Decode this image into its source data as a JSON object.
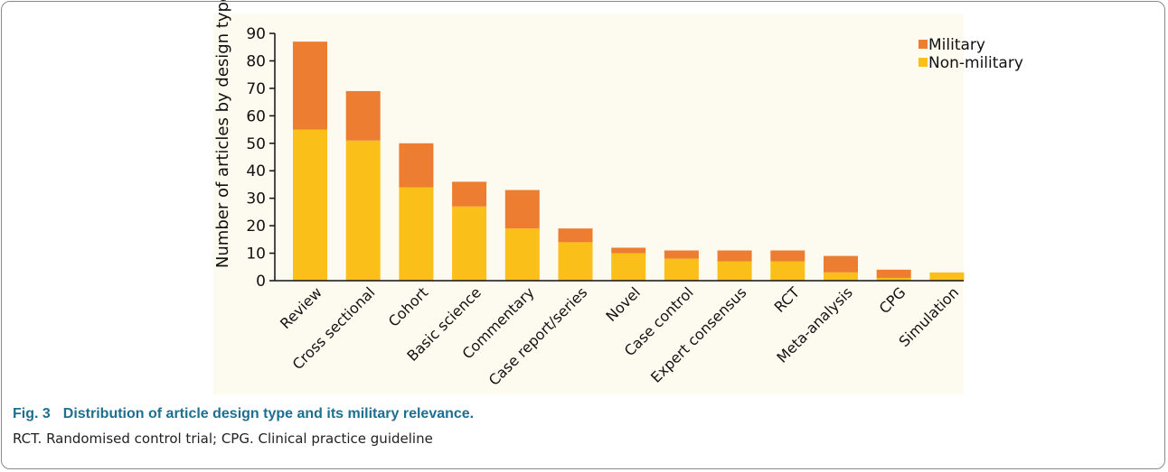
{
  "figure": {
    "label": "Fig. 3",
    "title": "Distribution of article design type and its military relevance.",
    "note": "RCT. Randomised control trial; CPG. Clinical practice guideline"
  },
  "chart_data": {
    "type": "bar",
    "stacked": true,
    "title": "",
    "xlabel": "",
    "ylabel": "Number of articles by design type",
    "ylim": [
      0,
      90
    ],
    "yticks": [
      0,
      10,
      20,
      30,
      40,
      50,
      60,
      70,
      80,
      90
    ],
    "categories": [
      "Review",
      "Cross sectional",
      "Cohort",
      "Basic science",
      "Commentary",
      "Case report/series",
      "Novel",
      "Case control",
      "Expert consensus",
      "RCT",
      "Meta-analysis",
      "CPG",
      "Simulation"
    ],
    "series": [
      {
        "name": "Non-military",
        "color": "#fbbf1a",
        "values": [
          55,
          51,
          34,
          27,
          19,
          14,
          10,
          8,
          7,
          7,
          3,
          1,
          3
        ]
      },
      {
        "name": "Military",
        "color": "#ed7d31",
        "values": [
          32,
          18,
          16,
          9,
          14,
          5,
          2,
          3,
          4,
          4,
          6,
          3,
          0
        ]
      }
    ],
    "legend": {
      "position": "top-right",
      "order": [
        "Military",
        "Non-military"
      ]
    },
    "grid": false
  }
}
